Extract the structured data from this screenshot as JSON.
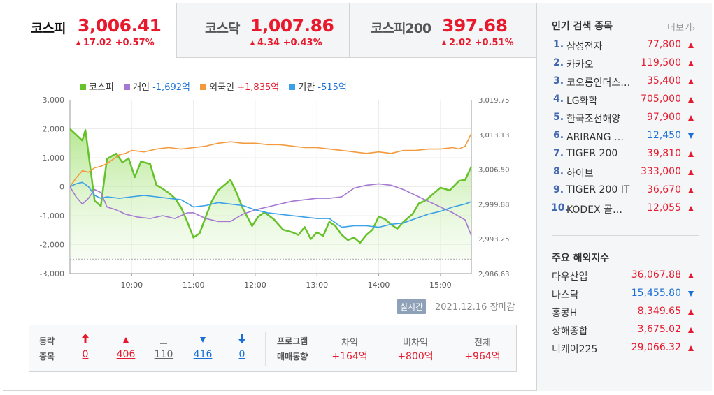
{
  "tabs": [
    {
      "name": "코스피",
      "value": "3,006.41",
      "change": "17.02 +0.57%"
    },
    {
      "name": "코스닥",
      "value": "1,007.86",
      "change": "4.34 +0.43%"
    },
    {
      "name": "코스피200",
      "value": "397.68",
      "change": "2.02 +0.51%"
    }
  ],
  "legend": [
    {
      "name": "코스피",
      "value": "",
      "color": "#66c22a"
    },
    {
      "name": "개인",
      "value": "-1,692억",
      "color": "#a579d3",
      "value_color": "#1a6fd6"
    },
    {
      "name": "외국인",
      "value": "+1,835억",
      "color": "#f39a3e",
      "value_color": "#e8192c"
    },
    {
      "name": "기관",
      "value": "-515억",
      "color": "#3aa0e8",
      "value_color": "#1a6fd6"
    }
  ],
  "chart_data": {
    "type": "line",
    "x_ticks": [
      "10:00",
      "11:00",
      "12:00",
      "13:00",
      "14:00",
      "15:00"
    ],
    "y_left_ticks": [
      "3,000",
      "2,000",
      "1,000",
      "0",
      "-1,000",
      "-2,000",
      "-3,000"
    ],
    "y_right_ticks": [
      "3,019.75",
      "3,013.13",
      "3,006.50",
      "2,999.88",
      "2,993.25",
      "2,986.63"
    ],
    "ylim_left": [
      -3000,
      3000
    ],
    "ylim_right": [
      2986.63,
      3019.75
    ],
    "x_range_hours": [
      9.0,
      15.5
    ],
    "prev_close": 2989.39,
    "series": [
      {
        "name": "코스피",
        "axis": "right",
        "color": "#66c22a",
        "x": [
          9.0,
          9.1,
          9.2,
          9.25,
          9.4,
          9.5,
          9.6,
          9.75,
          9.85,
          9.95,
          10.05,
          10.15,
          10.3,
          10.4,
          10.5,
          10.6,
          10.7,
          10.8,
          10.9,
          11.0,
          11.1,
          11.2,
          11.3,
          11.4,
          11.5,
          11.6,
          11.7,
          11.8,
          11.95,
          12.05,
          12.15,
          12.3,
          12.45,
          12.6,
          12.7,
          12.8,
          12.9,
          13.0,
          13.1,
          13.2,
          13.3,
          13.4,
          13.5,
          13.6,
          13.7,
          13.8,
          13.9,
          14.0,
          14.1,
          14.2,
          14.3,
          14.4,
          14.55,
          14.65,
          14.75,
          14.85,
          15.0,
          15.15,
          15.3,
          15.4,
          15.5
        ],
        "y": [
          3014.2,
          3013.1,
          3012.0,
          3014.0,
          3000.5,
          2999.5,
          3008.5,
          3009.5,
          3007.8,
          3008.6,
          3005.0,
          3008.0,
          3007.5,
          3003.5,
          3002.8,
          3002.0,
          3001.0,
          2999.2,
          2996.5,
          2993.5,
          2994.3,
          2997.5,
          3000.5,
          3002.5,
          3003.5,
          3004.5,
          3002.0,
          2999.0,
          2995.7,
          2997.5,
          2998.3,
          2997.0,
          2995.0,
          2994.5,
          2994.0,
          2995.5,
          2993.2,
          2994.5,
          2993.8,
          2996.5,
          2995.7,
          2994.0,
          2993.0,
          2993.5,
          2992.5,
          2994.0,
          2995.0,
          2997.5,
          2997.0,
          2996.0,
          2995.2,
          2996.5,
          2998.0,
          3000.0,
          3000.5,
          3001.5,
          3003.0,
          3002.5,
          3004.3,
          3004.5,
          3007.0
        ]
      },
      {
        "name": "개인",
        "axis": "left",
        "color": "#a579d3",
        "x": [
          9.0,
          9.1,
          9.2,
          9.3,
          9.4,
          9.5,
          9.6,
          9.75,
          9.9,
          10.0,
          10.1,
          10.3,
          10.5,
          10.7,
          10.9,
          11.0,
          11.2,
          11.4,
          11.6,
          11.8,
          12.0,
          12.2,
          12.4,
          12.6,
          12.8,
          13.0,
          13.2,
          13.4,
          13.6,
          13.8,
          14.0,
          14.2,
          14.4,
          14.6,
          14.8,
          15.0,
          15.2,
          15.4,
          15.5
        ],
        "y": [
          0,
          -350,
          -600,
          -400,
          -100,
          -200,
          -700,
          -800,
          -950,
          -1000,
          -1050,
          -1100,
          -1000,
          -1100,
          -900,
          -900,
          -1100,
          -1200,
          -1200,
          -950,
          -800,
          -700,
          -600,
          -500,
          -450,
          -400,
          -400,
          -350,
          -50,
          50,
          100,
          50,
          -100,
          -300,
          -500,
          -700,
          -900,
          -1150,
          -1692
        ]
      },
      {
        "name": "외국인",
        "axis": "left",
        "color": "#f39a3e",
        "x": [
          9.0,
          9.1,
          9.2,
          9.3,
          9.4,
          9.5,
          9.6,
          9.7,
          9.8,
          9.9,
          10.0,
          10.2,
          10.4,
          10.6,
          10.8,
          11.0,
          11.2,
          11.4,
          11.6,
          11.8,
          12.0,
          12.2,
          12.4,
          12.6,
          12.8,
          13.0,
          13.2,
          13.4,
          13.6,
          13.8,
          14.0,
          14.2,
          14.4,
          14.6,
          14.8,
          15.0,
          15.2,
          15.3,
          15.4,
          15.5
        ],
        "y": [
          0,
          300,
          550,
          500,
          650,
          700,
          800,
          950,
          1100,
          1150,
          1250,
          1200,
          1300,
          1350,
          1300,
          1350,
          1400,
          1500,
          1550,
          1500,
          1500,
          1450,
          1450,
          1400,
          1350,
          1350,
          1300,
          1250,
          1200,
          1150,
          1200,
          1150,
          1250,
          1250,
          1300,
          1300,
          1350,
          1300,
          1400,
          1835
        ]
      },
      {
        "name": "기관",
        "axis": "left",
        "color": "#3aa0e8",
        "x": [
          9.0,
          9.1,
          9.2,
          9.3,
          9.4,
          9.5,
          9.6,
          9.8,
          10.0,
          10.2,
          10.4,
          10.6,
          10.8,
          11.0,
          11.2,
          11.4,
          11.6,
          11.8,
          12.0,
          12.2,
          12.4,
          12.6,
          12.8,
          13.0,
          13.2,
          13.4,
          13.6,
          13.8,
          14.0,
          14.2,
          14.4,
          14.6,
          14.8,
          15.0,
          15.2,
          15.4,
          15.5
        ],
        "y": [
          0,
          100,
          150,
          0,
          -300,
          -400,
          -350,
          -400,
          -350,
          -300,
          -350,
          -400,
          -450,
          -700,
          -650,
          -550,
          -600,
          -650,
          -800,
          -900,
          -950,
          -1000,
          -1050,
          -1100,
          -1100,
          -1400,
          -1350,
          -1350,
          -1400,
          -1300,
          -1250,
          -1100,
          -950,
          -850,
          -700,
          -600,
          -515
        ]
      }
    ]
  },
  "realtime": {
    "badge": "실시간",
    "date": "2021.12.16 장마감"
  },
  "breadth": {
    "label_1": "등락",
    "label_2": "종목",
    "items": [
      {
        "value": "0",
        "icon": "limit-up-arrow"
      },
      {
        "value": "406",
        "icon": "up-triangle"
      },
      {
        "value": "110",
        "icon": "flat-dash"
      },
      {
        "value": "416",
        "icon": "down-triangle"
      },
      {
        "value": "0",
        "icon": "limit-down-arrow"
      }
    ]
  },
  "program": {
    "label_1": "프로그램",
    "label_2": "매매동향",
    "items": [
      {
        "label": "차익",
        "value": "+164억"
      },
      {
        "label": "비차익",
        "value": "+800억"
      },
      {
        "label": "전체",
        "value": "+964억"
      }
    ]
  },
  "popular": {
    "title": "인기 검색 종목",
    "more": "더보기",
    "items": [
      {
        "rank": "1.",
        "name": "삼성전자",
        "price": "77,800",
        "dir": "up"
      },
      {
        "rank": "2.",
        "name": "카카오",
        "price": "119,500",
        "dir": "up"
      },
      {
        "rank": "3.",
        "name": "코오롱인더스트리",
        "price": "35,400",
        "dir": "up"
      },
      {
        "rank": "4.",
        "name": "LG화학",
        "price": "705,000",
        "dir": "up"
      },
      {
        "rank": "5.",
        "name": "한국조선해양",
        "price": "97,900",
        "dir": "up"
      },
      {
        "rank": "6.",
        "name": "ARIRANG 고배당주",
        "price": "12,450",
        "dir": "down"
      },
      {
        "rank": "7.",
        "name": "TIGER 200",
        "price": "39,810",
        "dir": "up"
      },
      {
        "rank": "8.",
        "name": "하이브",
        "price": "333,000",
        "dir": "up"
      },
      {
        "rank": "9.",
        "name": "TIGER 200 IT",
        "price": "36,670",
        "dir": "up"
      },
      {
        "rank": "10.",
        "name": "KODEX 골드선물",
        "price": "12,055",
        "dir": "up"
      }
    ]
  },
  "overseas": {
    "title": "주요 해외지수",
    "items": [
      {
        "name": "다우산업",
        "value": "36,067.88",
        "dir": "up"
      },
      {
        "name": "나스닥",
        "value": "15,455.80",
        "dir": "down"
      },
      {
        "name": "홍콩H",
        "value": "8,349.65",
        "dir": "up"
      },
      {
        "name": "상해종합",
        "value": "3,675.02",
        "dir": "up"
      },
      {
        "name": "니케이225",
        "value": "29,066.32",
        "dir": "up"
      }
    ]
  },
  "colors": {
    "up": "#e8192c",
    "down": "#1a6fd6",
    "accent": "#4267b2"
  }
}
